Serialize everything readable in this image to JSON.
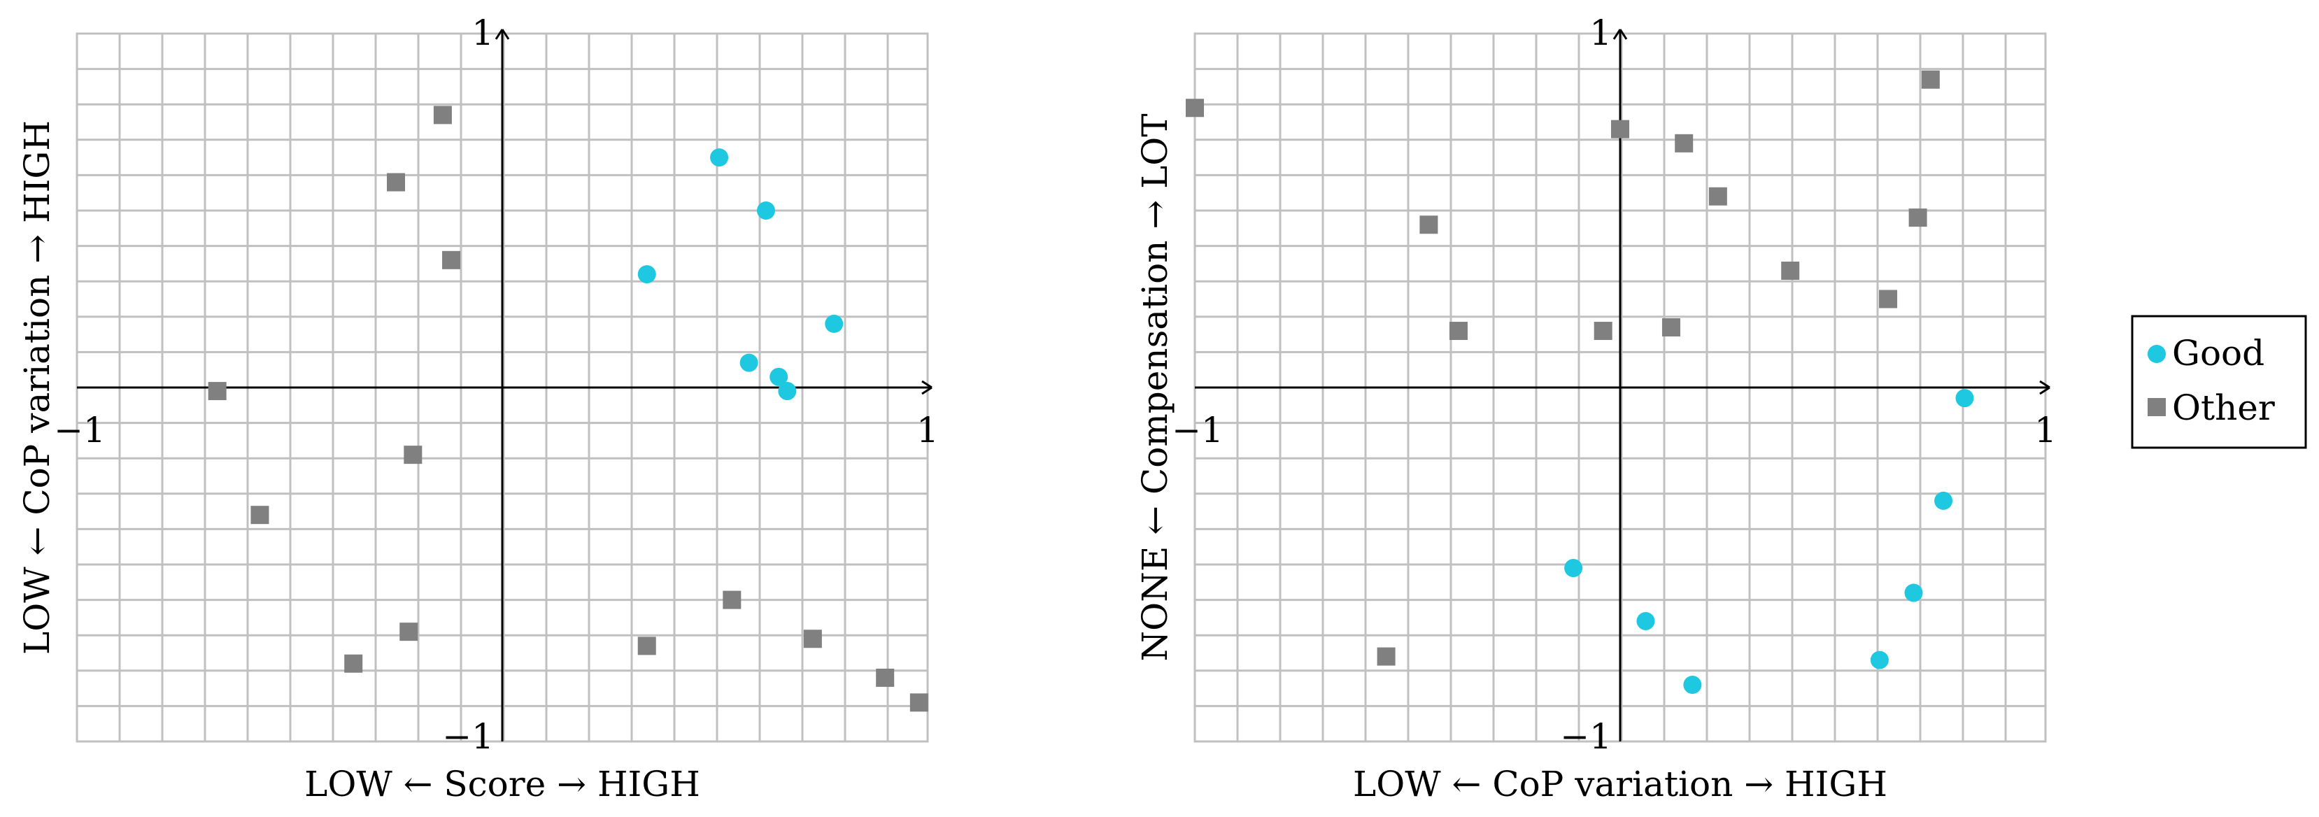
{
  "chart_data": [
    {
      "type": "scatter",
      "xlabel": "LOW ← Score → HIGH",
      "ylabel": "LOW ← CoP variation → HIGH",
      "xlim": [
        -1,
        1
      ],
      "ylim": [
        -1,
        1
      ],
      "grid": true,
      "x_ticks": [
        {
          "value": -1,
          "label": "−1"
        },
        {
          "value": 1,
          "label": "1"
        }
      ],
      "y_ticks": [
        {
          "value": -1,
          "label": "−1"
        },
        {
          "value": 1,
          "label": "1"
        }
      ],
      "series": [
        {
          "name": "Good",
          "marker": "circle",
          "color": "#1ec8e0",
          "points": [
            {
              "x": 0.51,
              "y": 0.65
            },
            {
              "x": 0.62,
              "y": 0.5
            },
            {
              "x": 0.34,
              "y": 0.32
            },
            {
              "x": 0.78,
              "y": 0.18
            },
            {
              "x": 0.58,
              "y": 0.07
            },
            {
              "x": 0.65,
              "y": 0.03
            },
            {
              "x": 0.67,
              "y": -0.01
            }
          ]
        },
        {
          "name": "Other",
          "marker": "square",
          "color": "#808080",
          "points": [
            {
              "x": -0.14,
              "y": 0.77
            },
            {
              "x": -0.25,
              "y": 0.58
            },
            {
              "x": -0.12,
              "y": 0.36
            },
            {
              "x": -0.67,
              "y": -0.01
            },
            {
              "x": -0.21,
              "y": -0.19
            },
            {
              "x": -0.57,
              "y": -0.36
            },
            {
              "x": -0.22,
              "y": -0.69
            },
            {
              "x": -0.35,
              "y": -0.78
            },
            {
              "x": 0.34,
              "y": -0.73
            },
            {
              "x": 0.54,
              "y": -0.6
            },
            {
              "x": 0.73,
              "y": -0.71
            },
            {
              "x": 0.9,
              "y": -0.82
            },
            {
              "x": 0.98,
              "y": -0.89
            }
          ]
        }
      ]
    },
    {
      "type": "scatter",
      "xlabel": "LOW ← CoP variation → HIGH",
      "ylabel": "NONE ← Compensation → LOT",
      "xlim": [
        -1,
        1
      ],
      "ylim": [
        -1,
        1
      ],
      "grid": true,
      "x_ticks": [
        {
          "value": -1,
          "label": "−1"
        },
        {
          "value": 1,
          "label": "1"
        }
      ],
      "y_ticks": [
        {
          "value": -1,
          "label": "−1"
        },
        {
          "value": 1,
          "label": "1"
        }
      ],
      "series": [
        {
          "name": "Good",
          "marker": "circle",
          "color": "#1ec8e0",
          "points": [
            {
              "x": 0.81,
              "y": -0.03
            },
            {
              "x": 0.76,
              "y": -0.32
            },
            {
              "x": -0.11,
              "y": -0.51
            },
            {
              "x": 0.69,
              "y": -0.58
            },
            {
              "x": 0.06,
              "y": -0.66
            },
            {
              "x": 0.61,
              "y": -0.77
            },
            {
              "x": 0.17,
              "y": -0.84
            }
          ]
        },
        {
          "name": "Other",
          "marker": "square",
          "color": "#808080",
          "points": [
            {
              "x": -1.0,
              "y": 0.79
            },
            {
              "x": 0.73,
              "y": 0.87
            },
            {
              "x": 0.0,
              "y": 0.73
            },
            {
              "x": 0.15,
              "y": 0.69
            },
            {
              "x": 0.23,
              "y": 0.54
            },
            {
              "x": -0.45,
              "y": 0.46
            },
            {
              "x": 0.7,
              "y": 0.48
            },
            {
              "x": 0.4,
              "y": 0.33
            },
            {
              "x": 0.63,
              "y": 0.25
            },
            {
              "x": -0.38,
              "y": 0.16
            },
            {
              "x": -0.04,
              "y": 0.16
            },
            {
              "x": 0.12,
              "y": 0.17
            },
            {
              "x": -0.55,
              "y": -0.76
            }
          ]
        }
      ]
    }
  ],
  "legend": {
    "placement": "right",
    "entries": [
      {
        "label": "Good",
        "marker": "circle",
        "color": "#1ec8e0"
      },
      {
        "label": "Other",
        "marker": "square",
        "color": "#808080"
      }
    ]
  },
  "colors": {
    "grid": "#c0c0c0",
    "axis": "#000000",
    "frame": "#c0c0c0"
  }
}
